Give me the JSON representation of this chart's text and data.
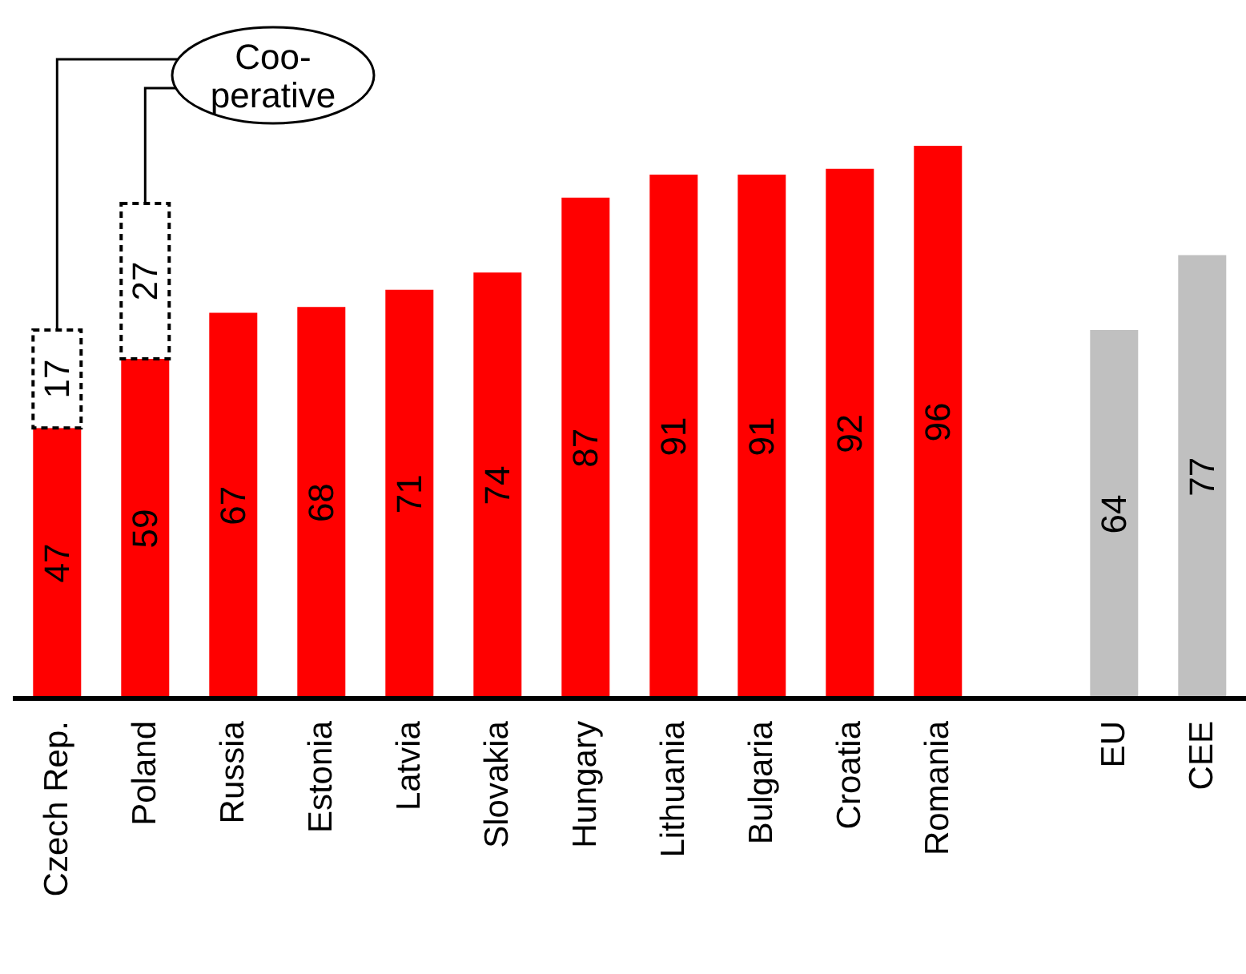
{
  "chart_data": {
    "type": "bar",
    "stacked": true,
    "data_labels": true,
    "categories": [
      "Czech Rep.",
      "Poland",
      "Russia",
      "Estonia",
      "Latvia",
      "Slovakia",
      "Hungary",
      "Lithuania",
      "Bulgaria",
      "Croatia",
      "Romania",
      null,
      "EU",
      "CEE"
    ],
    "series": [
      {
        "colors": [
          "#ff0000",
          "#ff0000",
          "#ff0000",
          "#ff0000",
          "#ff0000",
          "#ff0000",
          "#ff0000",
          "#ff0000",
          "#ff0000",
          "#ff0000",
          "#ff0000",
          null,
          "#c0c0c0",
          "#c0c0c0"
        ],
        "values": [
          47,
          59,
          67,
          68,
          71,
          74,
          87,
          91,
          91,
          92,
          96,
          null,
          64,
          77
        ]
      },
      {
        "name": "Coo-perative",
        "color": "#ffffff",
        "line_style": "dotted",
        "values": [
          17,
          27,
          null,
          null,
          null,
          null,
          null,
          null,
          null,
          null,
          null,
          null,
          null,
          null
        ]
      }
    ]
  }
}
